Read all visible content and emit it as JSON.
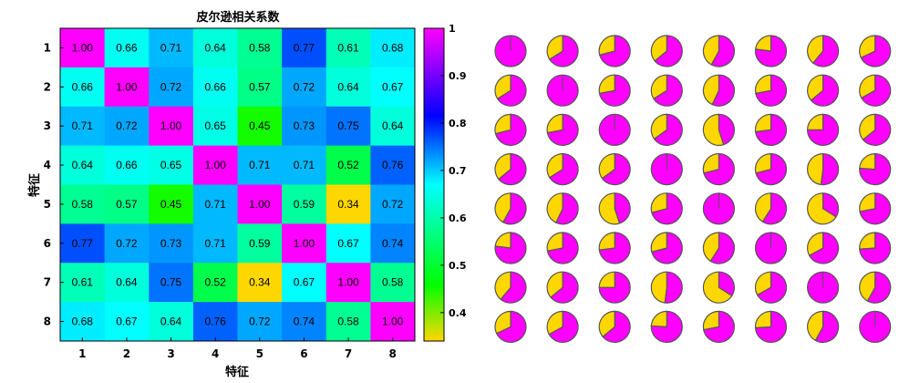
{
  "chart_data": [
    {
      "type": "heatmap",
      "title": "皮尔逊相关系数",
      "xlabel": "特征",
      "ylabel": "特征",
      "categories": [
        "1",
        "2",
        "3",
        "4",
        "5",
        "6",
        "7",
        "8"
      ],
      "values": [
        [
          1.0,
          0.66,
          0.71,
          0.64,
          0.58,
          0.77,
          0.61,
          0.68
        ],
        [
          0.66,
          1.0,
          0.72,
          0.66,
          0.57,
          0.72,
          0.64,
          0.67
        ],
        [
          0.71,
          0.72,
          1.0,
          0.65,
          0.45,
          0.73,
          0.75,
          0.64
        ],
        [
          0.64,
          0.66,
          0.65,
          1.0,
          0.71,
          0.71,
          0.52,
          0.76
        ],
        [
          0.58,
          0.57,
          0.45,
          0.71,
          1.0,
          0.59,
          0.34,
          0.72
        ],
        [
          0.77,
          0.72,
          0.73,
          0.71,
          0.59,
          1.0,
          0.67,
          0.74
        ],
        [
          0.61,
          0.64,
          0.75,
          0.52,
          0.34,
          0.67,
          1.0,
          0.58
        ],
        [
          0.68,
          0.67,
          0.64,
          0.76,
          0.72,
          0.74,
          0.58,
          1.0
        ]
      ],
      "value_labels_format": "0.00",
      "colorbar": {
        "min": 0.34,
        "max": 1.0,
        "ticks": [
          "0.4",
          "0.5",
          "0.6",
          "0.7",
          "0.8",
          "0.9",
          "1"
        ]
      },
      "colormap": [
        "#ffd700",
        "#00ff00",
        "#00ffff",
        "#0000ff",
        "#ff00ff"
      ]
    },
    {
      "type": "pie",
      "layout": "8x8 matrix of pies",
      "description_values": "each pie shows the correlation value as the magenta fraction, remainder yellow",
      "values_ref": "same matrix as heatmap"
    }
  ],
  "colors": {
    "fill_main": "#ff00ff",
    "fill_rest": "#ffd700",
    "pie_edge": "#555555"
  }
}
